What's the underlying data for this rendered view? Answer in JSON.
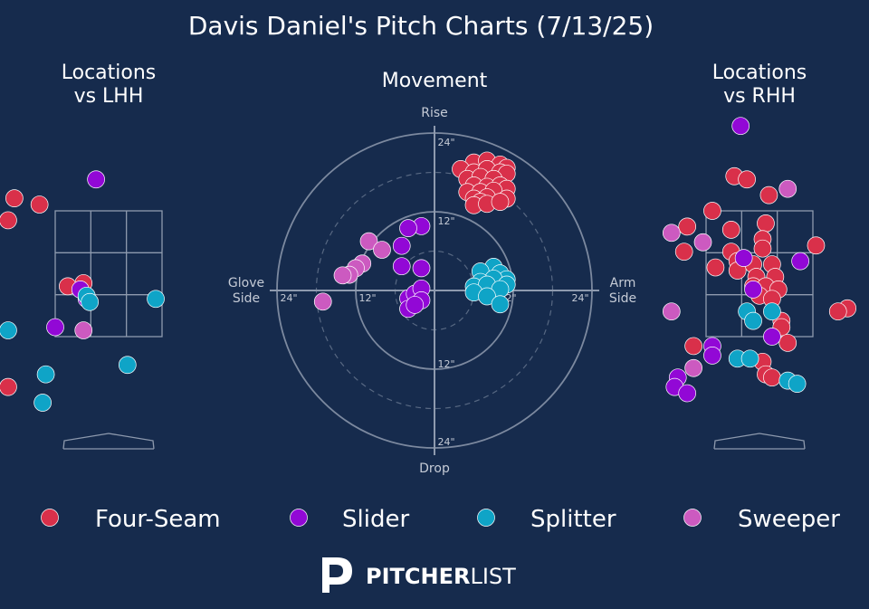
{
  "title": "Davis Daniel's Pitch Charts (7/13/25)",
  "colors": {
    "background": "#162b4d",
    "grid": "#8e9aae",
    "text": "#ffffff",
    "muted": "#c5cbd6",
    "Four-Seam": "#d9304a",
    "Slider": "#9208d6",
    "Splitter": "#0fa4c7",
    "Sweeper": "#cc5ac0"
  },
  "legend": [
    "Four-Seam",
    "Slider",
    "Splitter",
    "Sweeper"
  ],
  "logo": {
    "main": "PITCHER",
    "sub": "LIST"
  },
  "chart_data": [
    {
      "type": "scatter",
      "title": "Locations\nvs LHH",
      "series": [
        {
          "name": "Four-Seam",
          "points": [
            [
              -1.5,
              3.7
            ],
            [
              -1.1,
              3.6
            ],
            [
              -1.6,
              3.35
            ],
            [
              -0.4,
              2.35
            ],
            [
              -0.65,
              2.3
            ],
            [
              -1.6,
              0.7
            ]
          ]
        },
        {
          "name": "Slider",
          "points": [
            [
              -0.2,
              4.0
            ],
            [
              -0.45,
              2.25
            ],
            [
              -0.35,
              2.1
            ],
            [
              -0.85,
              1.65
            ]
          ]
        },
        {
          "name": "Splitter",
          "points": [
            [
              -0.35,
              2.15
            ],
            [
              -0.3,
              2.05
            ],
            [
              0.75,
              2.1
            ],
            [
              -1.6,
              1.6
            ],
            [
              -1.0,
              0.9
            ],
            [
              0.3,
              1.05
            ],
            [
              -1.05,
              0.45
            ]
          ]
        },
        {
          "name": "Sweeper",
          "points": [
            [
              -2.0,
              2.85
            ],
            [
              -0.4,
              1.6
            ]
          ]
        }
      ]
    },
    {
      "type": "scatter",
      "title": "Movement",
      "axis_labels": {
        "top": "Rise",
        "bottom": "Drop",
        "left": "Glove\nSide",
        "right": "Arm\nSide"
      },
      "ring_labels": [
        "12\"",
        "24\""
      ],
      "series": [
        {
          "name": "Four-Seam",
          "points": [
            [
              6,
              19.5
            ],
            [
              8,
              19.8
            ],
            [
              10,
              19.2
            ],
            [
              11,
              18.7
            ],
            [
              4,
              18.5
            ],
            [
              6,
              18
            ],
            [
              8,
              18.5
            ],
            [
              10,
              18
            ],
            [
              11,
              17.8
            ],
            [
              5,
              17
            ],
            [
              7,
              17.3
            ],
            [
              9,
              17
            ],
            [
              6,
              16
            ],
            [
              8,
              15.8
            ],
            [
              10,
              16
            ],
            [
              11,
              15.5
            ],
            [
              5,
              15
            ],
            [
              7,
              15
            ],
            [
              9,
              15.2
            ],
            [
              6,
              14
            ],
            [
              8,
              14.2
            ],
            [
              11,
              14
            ],
            [
              7,
              13.5
            ],
            [
              6,
              13
            ],
            [
              8,
              13.2
            ],
            [
              10,
              13.5
            ]
          ]
        },
        {
          "name": "Slider",
          "points": [
            [
              -2,
              9.8
            ],
            [
              -4,
              9.5
            ],
            [
              -5,
              6.8
            ],
            [
              -5,
              3.7
            ],
            [
              -2,
              3.4
            ],
            [
              -4,
              -1.2
            ],
            [
              -3,
              -0.5
            ],
            [
              -2,
              0.3
            ],
            [
              -2,
              -1.5
            ],
            [
              -4,
              -2.8
            ],
            [
              -3,
              -2.2
            ]
          ]
        },
        {
          "name": "Splitter",
          "points": [
            [
              9,
              3.6
            ],
            [
              10,
              2.6
            ],
            [
              7,
              2.9
            ],
            [
              11,
              1.7
            ],
            [
              9,
              1.8
            ],
            [
              7,
              1.3
            ],
            [
              6,
              0.6
            ],
            [
              8,
              0.9
            ],
            [
              11,
              0.9
            ],
            [
              10,
              0.2
            ],
            [
              6,
              -0.3
            ],
            [
              8,
              -0.9
            ],
            [
              10,
              -2.1
            ]
          ]
        },
        {
          "name": "Sweeper",
          "points": [
            [
              -10,
              7.5
            ],
            [
              -8,
              6.2
            ],
            [
              -11,
              4.1
            ],
            [
              -12,
              3.4
            ],
            [
              -13,
              2.4
            ],
            [
              -14,
              2.3
            ],
            [
              -17,
              -1.7
            ]
          ]
        }
      ]
    },
    {
      "type": "scatter",
      "title": "Locations\nvs RHH",
      "series": [
        {
          "name": "Four-Seam",
          "points": [
            [
              -0.4,
              4.05
            ],
            [
              -0.2,
              4.0
            ],
            [
              0.15,
              3.75
            ],
            [
              -0.75,
              3.5
            ],
            [
              0.1,
              3.3
            ],
            [
              -1.15,
              3.25
            ],
            [
              -0.45,
              3.2
            ],
            [
              0.05,
              3.05
            ],
            [
              0.05,
              2.9
            ],
            [
              -1.2,
              2.85
            ],
            [
              -0.45,
              2.85
            ],
            [
              0.9,
              2.95
            ],
            [
              -0.35,
              2.7
            ],
            [
              -0.7,
              2.6
            ],
            [
              -0.1,
              2.65
            ],
            [
              0.2,
              2.65
            ],
            [
              -0.35,
              2.55
            ],
            [
              -0.05,
              2.45
            ],
            [
              0.25,
              2.45
            ],
            [
              -0.1,
              2.3
            ],
            [
              0.1,
              2.3
            ],
            [
              0.3,
              2.25
            ],
            [
              0.0,
              2.15
            ],
            [
              0.2,
              2.1
            ],
            [
              1.4,
              1.95
            ],
            [
              1.25,
              1.9
            ],
            [
              0.35,
              1.75
            ],
            [
              0.35,
              1.65
            ],
            [
              0.45,
              1.4
            ],
            [
              -1.05,
              1.35
            ],
            [
              0.05,
              1.1
            ],
            [
              0.1,
              0.9
            ],
            [
              0.2,
              0.85
            ]
          ]
        },
        {
          "name": "Slider",
          "points": [
            [
              -0.3,
              4.85
            ],
            [
              -0.25,
              2.75
            ],
            [
              0.65,
              2.7
            ],
            [
              -0.1,
              2.25
            ],
            [
              0.2,
              1.5
            ],
            [
              -0.75,
              1.35
            ],
            [
              -1.3,
              0.85
            ],
            [
              -0.75,
              1.2
            ],
            [
              -1.35,
              0.7
            ],
            [
              -1.15,
              0.6
            ]
          ]
        },
        {
          "name": "Splitter",
          "points": [
            [
              -0.2,
              1.9
            ],
            [
              0.2,
              1.9
            ],
            [
              -0.1,
              1.75
            ],
            [
              -0.35,
              1.15
            ],
            [
              -0.15,
              1.15
            ],
            [
              0.45,
              0.8
            ],
            [
              0.6,
              0.75
            ]
          ]
        },
        {
          "name": "Sweeper",
          "points": [
            [
              0.45,
              3.85
            ],
            [
              -1.4,
              3.15
            ],
            [
              -0.9,
              3.0
            ],
            [
              -1.4,
              1.9
            ],
            [
              -1.05,
              1.0
            ]
          ]
        }
      ]
    }
  ]
}
